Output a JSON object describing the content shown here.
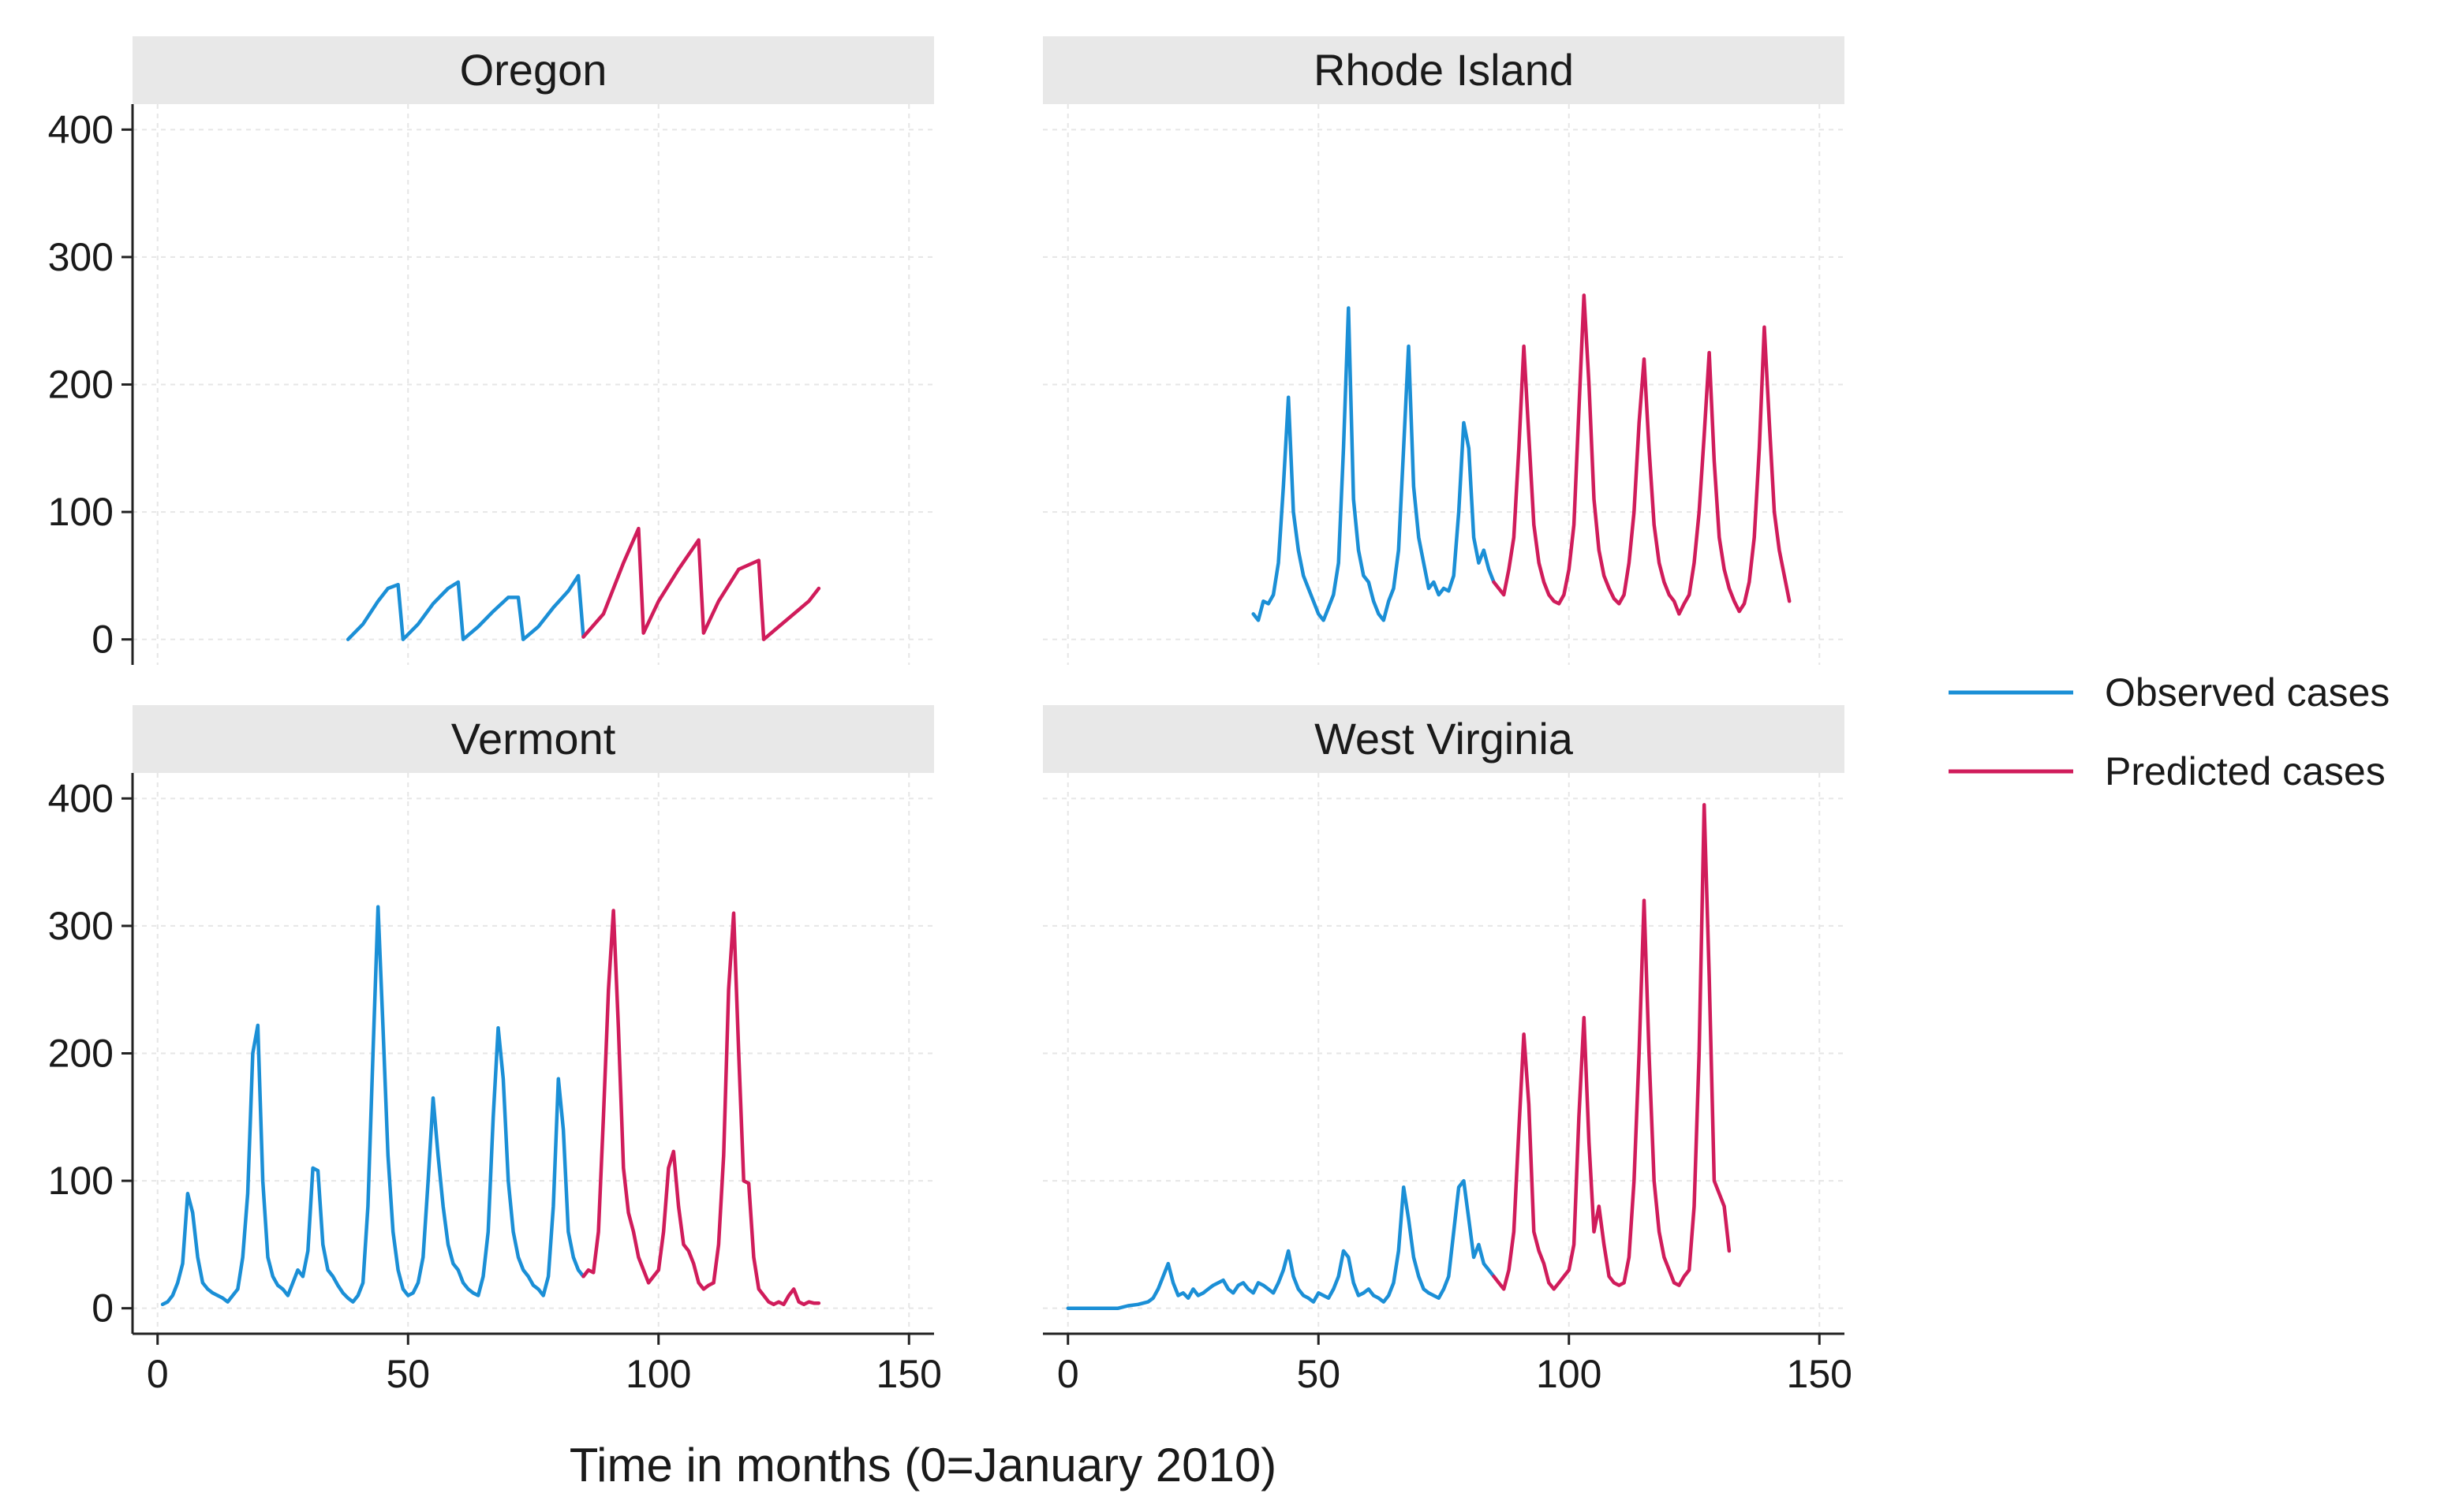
{
  "chart_data": {
    "type": "line",
    "xlabel": "Time in months (0=January 2010)",
    "ylabel": "",
    "xlim": [
      -5,
      155
    ],
    "ylim": [
      -20,
      420
    ],
    "xticks": [
      0,
      50,
      100,
      150
    ],
    "yticks": [
      0,
      100,
      200,
      300,
      400
    ],
    "grid": true,
    "legend_position": "right",
    "colors": {
      "observed": "#1b8fd6",
      "predicted": "#d01c5b",
      "strip_bg": "#e8e8e8",
      "grid": "#e6e6e6",
      "axis": "#222222"
    },
    "legend": [
      {
        "key": "observed",
        "label": "Observed cases"
      },
      {
        "key": "predicted",
        "label": "Predicted cases"
      }
    ],
    "panels": [
      {
        "title": "Oregon",
        "series": [
          {
            "name": "Observed cases",
            "key": "observed",
            "x": [
              38,
              41,
              44,
              46,
              48,
              49,
              52,
              55,
              58,
              60,
              61,
              64,
              67,
              70,
              72,
              73,
              76,
              79,
              82,
              84,
              85
            ],
            "y": [
              0,
              12,
              30,
              40,
              43,
              0,
              12,
              28,
              40,
              45,
              0,
              10,
              22,
              33,
              33,
              0,
              10,
              25,
              38,
              50,
              2
            ]
          },
          {
            "name": "Predicted cases",
            "key": "predicted",
            "x": [
              85,
              89,
              93,
              96,
              97,
              100,
              104,
              108,
              109,
              112,
              116,
              120,
              121,
              124,
              127,
              130,
              132
            ],
            "y": [
              2,
              20,
              60,
              87,
              5,
              30,
              55,
              78,
              5,
              30,
              55,
              62,
              0,
              10,
              20,
              30,
              40
            ]
          }
        ]
      },
      {
        "title": "Rhode Island",
        "series": [
          {
            "name": "Observed cases",
            "key": "observed",
            "x": [
              37,
              38,
              39,
              40,
              41,
              42,
              43,
              44,
              45,
              46,
              47,
              48,
              49,
              50,
              51,
              52,
              53,
              54,
              55,
              56,
              57,
              58,
              59,
              60,
              61,
              62,
              63,
              64,
              65,
              66,
              67,
              68,
              69,
              70,
              71,
              72,
              73,
              74,
              75,
              76,
              77,
              78,
              79,
              80,
              81,
              82,
              83,
              84,
              85
            ],
            "y": [
              20,
              15,
              30,
              28,
              35,
              60,
              120,
              190,
              100,
              70,
              50,
              40,
              30,
              20,
              15,
              25,
              35,
              60,
              150,
              260,
              110,
              70,
              50,
              45,
              30,
              20,
              15,
              30,
              40,
              70,
              150,
              230,
              120,
              80,
              60,
              40,
              45,
              35,
              40,
              38,
              50,
              100,
              170,
              150,
              80,
              60,
              70,
              55,
              45
            ]
          },
          {
            "name": "Predicted cases",
            "key": "predicted",
            "x": [
              85,
              86,
              87,
              88,
              89,
              90,
              91,
              92,
              93,
              94,
              95,
              96,
              97,
              98,
              99,
              100,
              101,
              102,
              103,
              104,
              105,
              106,
              107,
              108,
              109,
              110,
              111,
              112,
              113,
              114,
              115,
              116,
              117,
              118,
              119,
              120,
              121,
              122,
              123,
              124,
              125,
              126,
              127,
              128,
              129,
              130,
              131,
              132,
              133,
              134,
              135,
              136,
              137,
              138,
              139,
              140,
              141,
              142,
              143,
              144
            ],
            "y": [
              45,
              40,
              35,
              55,
              80,
              150,
              230,
              160,
              90,
              60,
              45,
              35,
              30,
              28,
              35,
              55,
              90,
              180,
              270,
              200,
              110,
              70,
              50,
              40,
              32,
              28,
              35,
              60,
              100,
              170,
              220,
              150,
              90,
              60,
              45,
              35,
              30,
              20,
              28,
              35,
              60,
              100,
              160,
              225,
              140,
              80,
              55,
              40,
              30,
              22,
              28,
              45,
              80,
              150,
              245,
              170,
              100,
              70,
              50,
              30
            ]
          }
        ]
      },
      {
        "title": "Vermont",
        "series": [
          {
            "name": "Observed cases",
            "key": "observed",
            "x": [
              1,
              2,
              3,
              4,
              5,
              6,
              7,
              8,
              9,
              10,
              11,
              12,
              13,
              14,
              15,
              16,
              17,
              18,
              19,
              20,
              21,
              22,
              23,
              24,
              25,
              26,
              27,
              28,
              29,
              30,
              31,
              32,
              33,
              34,
              35,
              36,
              37,
              38,
              39,
              40,
              41,
              42,
              43,
              44,
              45,
              46,
              47,
              48,
              49,
              50,
              51,
              52,
              53,
              54,
              55,
              56,
              57,
              58,
              59,
              60,
              61,
              62,
              63,
              64,
              65,
              66,
              67,
              68,
              69,
              70,
              71,
              72,
              73,
              74,
              75,
              76,
              77,
              78,
              79,
              80,
              81,
              82,
              83,
              84,
              85
            ],
            "y": [
              3,
              5,
              10,
              20,
              35,
              90,
              75,
              40,
              20,
              15,
              12,
              10,
              8,
              5,
              10,
              15,
              40,
              90,
              200,
              222,
              100,
              40,
              25,
              18,
              15,
              10,
              20,
              30,
              25,
              45,
              110,
              108,
              50,
              30,
              25,
              18,
              12,
              8,
              5,
              10,
              20,
              80,
              200,
              315,
              220,
              120,
              60,
              30,
              15,
              10,
              12,
              20,
              40,
              100,
              165,
              120,
              80,
              50,
              35,
              30,
              20,
              15,
              12,
              10,
              25,
              60,
              150,
              220,
              180,
              100,
              60,
              40,
              30,
              25,
              18,
              15,
              10,
              25,
              80,
              180,
              140,
              60,
              40,
              30,
              25
            ]
          },
          {
            "name": "Predicted cases",
            "key": "predicted",
            "x": [
              85,
              86,
              87,
              88,
              89,
              90,
              91,
              92,
              93,
              94,
              95,
              96,
              97,
              98,
              99,
              100,
              101,
              102,
              103,
              104,
              105,
              106,
              107,
              108,
              109,
              110,
              111,
              112,
              113,
              114,
              115,
              116,
              117,
              118,
              119,
              120,
              121,
              122,
              123,
              124,
              125,
              126,
              127,
              128,
              129,
              130,
              131,
              132
            ],
            "y": [
              25,
              30,
              28,
              60,
              150,
              250,
              312,
              220,
              110,
              75,
              60,
              40,
              30,
              20,
              25,
              30,
              60,
              110,
              123,
              80,
              50,
              45,
              35,
              20,
              15,
              18,
              20,
              50,
              120,
              250,
              310,
              200,
              100,
              98,
              40,
              15,
              10,
              5,
              3,
              5,
              3,
              10,
              15,
              5,
              3,
              5,
              4,
              4
            ]
          }
        ]
      },
      {
        "title": "West Virginia",
        "series": [
          {
            "name": "Observed cases",
            "key": "observed",
            "x": [
              0,
              2,
              4,
              6,
              8,
              10,
              12,
              14,
              16,
              17,
              18,
              19,
              20,
              21,
              22,
              23,
              24,
              25,
              26,
              27,
              28,
              29,
              30,
              31,
              32,
              33,
              34,
              35,
              36,
              37,
              38,
              39,
              40,
              41,
              42,
              43,
              44,
              45,
              46,
              47,
              48,
              49,
              50,
              51,
              52,
              53,
              54,
              55,
              56,
              57,
              58,
              59,
              60,
              61,
              62,
              63,
              64,
              65,
              66,
              67,
              68,
              69,
              70,
              71,
              72,
              73,
              74,
              75,
              76,
              77,
              78,
              79,
              80,
              81,
              82,
              83,
              84,
              85
            ],
            "y": [
              0,
              0,
              0,
              0,
              0,
              0,
              2,
              3,
              5,
              8,
              15,
              25,
              35,
              20,
              10,
              12,
              8,
              15,
              10,
              12,
              15,
              18,
              20,
              22,
              15,
              12,
              18,
              20,
              15,
              12,
              20,
              18,
              15,
              12,
              20,
              30,
              45,
              25,
              15,
              10,
              8,
              5,
              12,
              10,
              8,
              15,
              25,
              45,
              40,
              20,
              10,
              12,
              15,
              10,
              8,
              5,
              10,
              20,
              45,
              95,
              70,
              40,
              25,
              15,
              12,
              10,
              8,
              15,
              25,
              60,
              95,
              100,
              70,
              40,
              50,
              35,
              30,
              25
            ]
          },
          {
            "name": "Predicted cases",
            "key": "predicted",
            "x": [
              85,
              86,
              87,
              88,
              89,
              90,
              91,
              92,
              93,
              94,
              95,
              96,
              97,
              98,
              99,
              100,
              101,
              102,
              103,
              104,
              105,
              106,
              107,
              108,
              109,
              110,
              111,
              112,
              113,
              114,
              115,
              116,
              117,
              118,
              119,
              120,
              121,
              122,
              123,
              124,
              125,
              126,
              127,
              128,
              129,
              130,
              131,
              132
            ],
            "y": [
              25,
              20,
              15,
              30,
              60,
              140,
              215,
              160,
              60,
              45,
              35,
              20,
              15,
              20,
              25,
              30,
              50,
              150,
              228,
              130,
              60,
              80,
              50,
              25,
              20,
              18,
              20,
              40,
              100,
              200,
              320,
              200,
              100,
              60,
              40,
              30,
              20,
              18,
              25,
              30,
              80,
              200,
              395,
              260,
              100,
              90,
              80,
              45
            ]
          }
        ]
      }
    ]
  }
}
